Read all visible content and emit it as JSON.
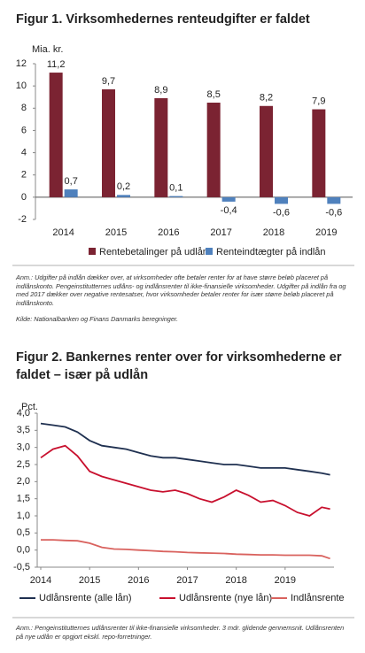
{
  "chart_data": [
    {
      "type": "bar",
      "title": "Figur 1. Virksomhedernes renteudgifter er faldet",
      "ylabel": "Mia. kr.",
      "categories": [
        "2014",
        "2015",
        "2016",
        "2017",
        "2018",
        "2019"
      ],
      "series": [
        {
          "name": "Rentebetalinger på udlån",
          "color": "#7b2332",
          "values": [
            11.2,
            9.7,
            8.9,
            8.5,
            8.2,
            7.9
          ],
          "value_labels": [
            "11,2",
            "9,7",
            "8,9",
            "8,5",
            "8,2",
            "7,9"
          ]
        },
        {
          "name": "Renteindtægter på indlån",
          "color": "#4f81bd",
          "values": [
            0.7,
            0.2,
            0.1,
            -0.4,
            -0.6,
            -0.6
          ],
          "value_labels": [
            "0,7",
            "0,2",
            "0,1",
            "-0,4",
            "-0,6",
            "-0,6"
          ]
        }
      ],
      "ylim": [
        -2,
        12
      ],
      "yticks": [
        -2,
        0,
        2,
        4,
        6,
        8,
        10,
        12
      ],
      "note": "Anm.: Udgifter på indlån dækker over, at virksomheder ofte betaler renter for at have større beløb placeret på indlånskonto. Pengeinstitutternes udlåns- og indlånsrenter til ikke-finansielle virksomheder. Udgifter på indlån fra og med 2017 dækker over negative rentesatser, hvor virksomheder betaler renter for især større beløb placeret på indlånskonto.",
      "source": "Kilde: Nationalbanken og Finans Danmarks beregninger."
    },
    {
      "type": "line",
      "title": "Figur 2. Bankernes renter over for virksomhederne er faldet – især på udlån",
      "ylabel": "Pct.",
      "x": [
        2014,
        2014.25,
        2014.5,
        2014.75,
        2015,
        2015.25,
        2015.5,
        2015.75,
        2016,
        2016.25,
        2016.5,
        2016.75,
        2017,
        2017.25,
        2017.5,
        2017.75,
        2018,
        2018.25,
        2018.5,
        2018.75,
        2019,
        2019.25,
        2019.5,
        2019.75,
        2019.92
      ],
      "series": [
        {
          "name": "Udlånsrente (alle lån)",
          "color": "#1f3050",
          "values": [
            3.7,
            3.65,
            3.6,
            3.45,
            3.2,
            3.05,
            3.0,
            2.95,
            2.85,
            2.75,
            2.7,
            2.7,
            2.65,
            2.6,
            2.55,
            2.5,
            2.5,
            2.45,
            2.4,
            2.4,
            2.4,
            2.35,
            2.3,
            2.25,
            2.2
          ]
        },
        {
          "name": "Udlånsrente (nye lån)",
          "color": "#c8102e",
          "values": [
            2.7,
            2.95,
            3.05,
            2.75,
            2.3,
            2.15,
            2.05,
            1.95,
            1.85,
            1.75,
            1.7,
            1.75,
            1.65,
            1.5,
            1.4,
            1.55,
            1.75,
            1.6,
            1.4,
            1.45,
            1.3,
            1.1,
            1.0,
            1.25,
            1.2
          ]
        },
        {
          "name": "Indlånsrente",
          "color": "#d9625e",
          "values": [
            0.3,
            0.3,
            0.28,
            0.27,
            0.2,
            0.08,
            0.03,
            0.02,
            0.0,
            -0.02,
            -0.04,
            -0.05,
            -0.07,
            -0.08,
            -0.09,
            -0.1,
            -0.12,
            -0.13,
            -0.14,
            -0.14,
            -0.15,
            -0.15,
            -0.15,
            -0.17,
            -0.25
          ]
        }
      ],
      "xlim": [
        2014,
        2020
      ],
      "xticks": [
        2014,
        2015,
        2016,
        2017,
        2018,
        2019
      ],
      "ylim": [
        -0.5,
        4
      ],
      "yticks": [
        {
          "value": -0.5,
          "label": "-0,5"
        },
        {
          "value": 0,
          "label": "0,0"
        },
        {
          "value": 0.5,
          "label": "0,5"
        },
        {
          "value": 1,
          "label": "1,0"
        },
        {
          "value": 1.5,
          "label": "1,5"
        },
        {
          "value": 2,
          "label": "2,0"
        },
        {
          "value": 2.5,
          "label": "2,5"
        },
        {
          "value": 3,
          "label": "3,0"
        },
        {
          "value": 3.5,
          "label": "3,5"
        },
        {
          "value": 4,
          "label": "4,0"
        }
      ],
      "note": "Anm.: Pengeinstitutternes udlånsrenter til ikke-finansielle virksomheder. 3 mdr. glidende gennemsnit. Udlånsrenten på nye udlån er opgjort ekskl. repo-forretninger."
    }
  ]
}
